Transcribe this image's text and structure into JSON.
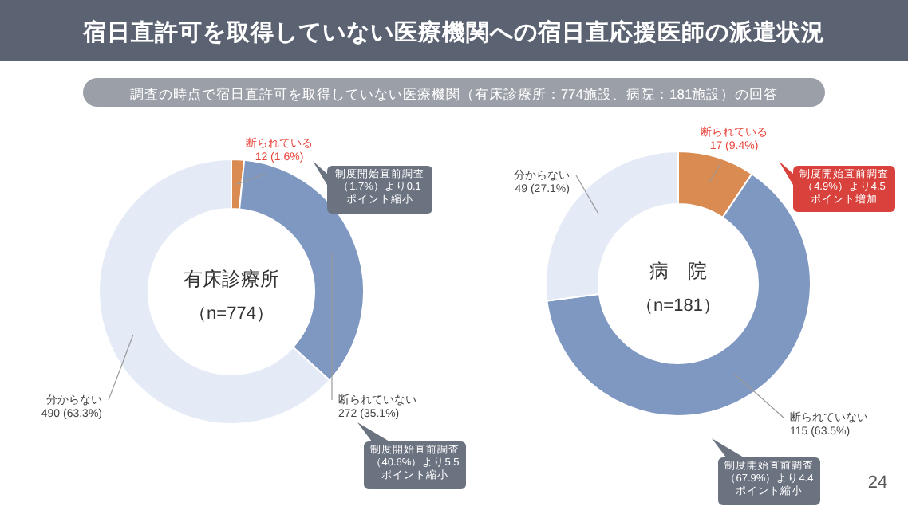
{
  "chart_data": [
    {
      "type": "donut",
      "title": "有床診療所",
      "subtitle": "（n=774）",
      "categories": [
        "断られている",
        "断られていない",
        "分からない"
      ],
      "values": [
        12,
        272,
        490
      ],
      "value_labels": [
        "12 (1.6%)",
        "272 (35.1%)",
        "490 (63.3%)"
      ],
      "colors": [
        "#d98b52",
        "#7f98c2",
        "#e4eaf6"
      ],
      "annotations": [
        "宿日直許可を取得していない医療機関への宿日直応援医師の派遣状況",
        "調査の時点で宿日直許可を取得していない医療機関（有床診療所：774施設、病院：181施設）の回答",
        {
          "text": "制度開始直前調査（1.7%）より0.1ポイント縮小",
          "x": "断られている"
        },
        {
          "text": "制度開始直前調査（40.6%）より5.5ポイント縮小",
          "x": "断られていない"
        }
      ]
    },
    {
      "type": "donut",
      "title": "病　院",
      "subtitle": "（n=181）",
      "categories": [
        "断られている",
        "断られていない",
        "分からない"
      ],
      "values": [
        17,
        115,
        49
      ],
      "value_labels": [
        "17 (9.4%)",
        "115 (63.5%)",
        "49 (27.1%)"
      ],
      "colors": [
        "#d98b52",
        "#7f98c2",
        "#e4eaf6"
      ],
      "annotations": [
        {
          "text": "制度開始直前調査（4.9%）より4.5ポイント増加",
          "x": "断られている"
        },
        {
          "text": "制度開始直前調査（67.9%）より4.4ポイント縮小",
          "x": "断られていない"
        },
        "24"
      ]
    }
  ]
}
